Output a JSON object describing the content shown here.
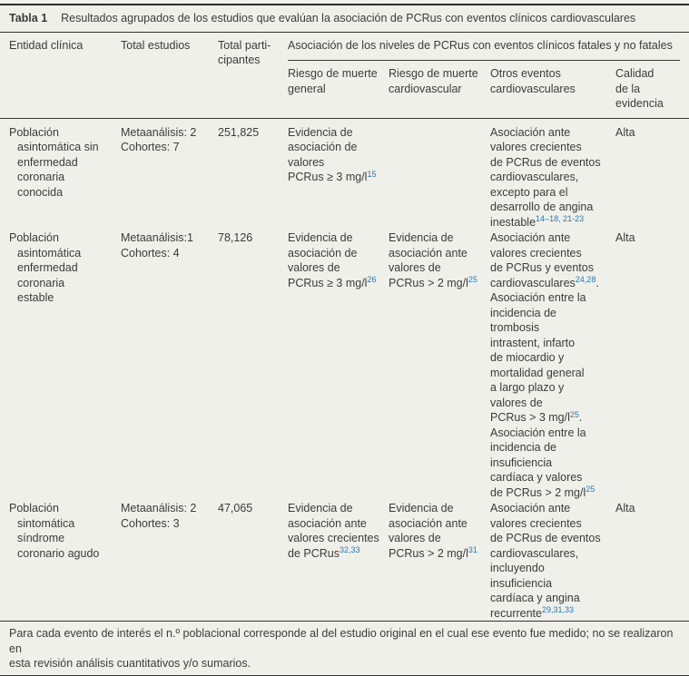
{
  "page": {
    "background_color": "#f0f0eb",
    "text_color": "#3b3b3b",
    "citation_color": "#2878b5",
    "border_color": "#333333"
  },
  "table": {
    "title": {
      "label": "Tabla 1",
      "text": "Resultados agrupados de los estudios que evalúan la asociación de PCRus con eventos clínicos cardiovasculares"
    },
    "header": {
      "entidad": "Entidad clínica",
      "total_estudios": "Total estudios",
      "total_participantes": "Total parti-\ncipantes",
      "group": "Asociación de los niveles de PCRus con eventos clínicos fatales y no fatales",
      "riesgo_general": "Riesgo de muerte\ngeneral",
      "riesgo_cardiovascular": "Riesgo de muerte\ncardiovascular",
      "otros_eventos": "Otros eventos\ncardiovasculares",
      "calidad": "Calidad\nde la\nevidencia"
    },
    "rows": [
      {
        "entidad": "Población\nasintomática sin\nenfermedad\ncoronaria\nconocida",
        "estudios": "Metaanálisis: 2\nCohortes: 7",
        "participantes": "251,825",
        "muerte_general": [
          {
            "t": "Evidencia de\nasociación de\nvalores\nPCRus ≥ 3 mg/l"
          },
          {
            "s": "15"
          }
        ],
        "muerte_cardiovascular": [],
        "otros_eventos": [
          {
            "t": "Asociación ante\nvalores crecientes\nde PCRus de eventos\ncardiovasculares,\nexcepto para el\ndesarrollo de angina\ninestable"
          },
          {
            "s": "14–18, 21-23"
          }
        ],
        "calidad": "Alta"
      },
      {
        "entidad": "Población\nasintomática\nenfermedad\ncoronaria\nestable",
        "estudios": "Metaanálisis:1\nCohortes: 4",
        "participantes": "78,126",
        "muerte_general": [
          {
            "t": "Evidencia de\nasociación de\nvalores de\nPCRus ≥ 3 mg/l"
          },
          {
            "s": "26"
          }
        ],
        "muerte_cardiovascular": [
          {
            "t": "Evidencia de\nasociación ante\nvalores de\nPCRus > 2 mg/l"
          },
          {
            "s": "25"
          }
        ],
        "otros_eventos": [
          {
            "t": "Asociación ante\nvalores crecientes\nde PCRus y eventos\ncardiovasculares"
          },
          {
            "s": "24,28"
          },
          {
            "t": ".\nAsociación entre la\nincidencia de\ntrombosis\nintrastent, infarto\nde miocardio y\nmortalidad general\na largo plazo y\nvalores de\nPCRus > 3 mg/l"
          },
          {
            "s": "25"
          },
          {
            "t": ".\nAsociación entre la\nincidencia de\ninsuficiencia\ncardíaca y valores\nde PCRus > 2 mg/l"
          },
          {
            "s": "25"
          }
        ],
        "calidad": "Alta"
      },
      {
        "entidad": "Población\nsintomática\nsíndrome\ncoronario agudo",
        "estudios": "Metaanálisis: 2\nCohortes: 3",
        "participantes": "47,065",
        "muerte_general": [
          {
            "t": "Evidencia de\nasociación ante\nvalores crecientes\nde PCRus"
          },
          {
            "s": "32,33"
          }
        ],
        "muerte_cardiovascular": [
          {
            "t": "Evidencia de\nasociación ante\nvalores de\nPCRus > 2 mg/l"
          },
          {
            "s": "31"
          }
        ],
        "otros_eventos": [
          {
            "t": "Asociación ante\nvalores crecientes\nde PCRus de eventos\ncardiovasculares,\nincluyendo\ninsuficiencia\ncardíaca y angina\nrecurrente"
          },
          {
            "s": "29,31,33"
          }
        ],
        "calidad": "Alta"
      }
    ],
    "footnote": "Para cada evento de interés el n.º poblacional corresponde al del estudio original en el cual ese evento fue medido; no se realizaron en\nesta revisión análisis cuantitativos y/o sumarios."
  }
}
